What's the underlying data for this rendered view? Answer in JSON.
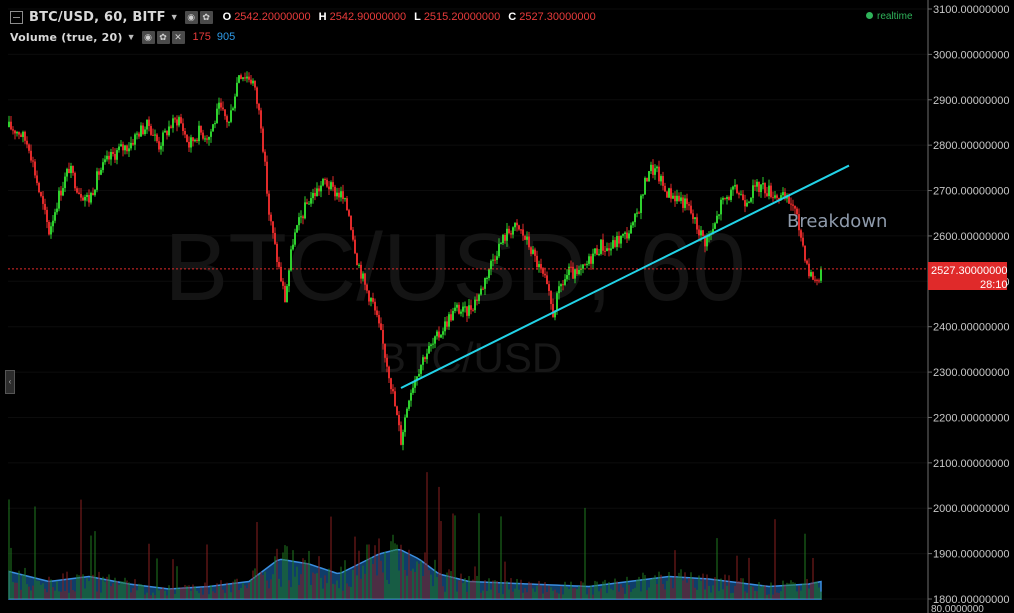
{
  "header": {
    "symbol": "BTC/USD, 60, BITF",
    "open_label": "O",
    "open_value": "2542.20000000",
    "high_label": "H",
    "high_value": "2542.90000000",
    "low_label": "L",
    "low_value": "2515.20000000",
    "close_label": "C",
    "close_value": "2527.30000000",
    "volume_label": "Volume (true, 20)",
    "volume_value_red": "175",
    "volume_value_blue": "905",
    "realtime_label": "realtime"
  },
  "watermark": {
    "main": "BTC/USD, 60",
    "sub": "BTC/USD"
  },
  "annotation": {
    "text": "Breakdown"
  },
  "colors": {
    "up": "#2ed12e",
    "down": "#e02a2a",
    "trendline": "#22d3e8",
    "price_line": "#e02a2a",
    "volume_area": "#1b6fc0"
  },
  "chart_data": {
    "type": "candlestick",
    "y_axis": {
      "labels": [
        "3100.00000000",
        "3000.00000000",
        "2900.00000000",
        "2800.00000000",
        "2700.00000000",
        "2600.00000000",
        "2500.00000000",
        "2400.00000000",
        "2300.00000000",
        "2200.00000000",
        "2100.00000000",
        "2000.00000000",
        "1900.00000000",
        "1800.00000000"
      ],
      "ylim": [
        1800,
        3100
      ],
      "volume_axis_label": "80.0000000"
    },
    "current_price": {
      "label": "2527.30000000",
      "timer": "28:10",
      "value": 2527.3
    },
    "price_path": [
      [
        0,
        2840
      ],
      [
        5,
        2830
      ],
      [
        10,
        2800
      ],
      [
        15,
        2700
      ],
      [
        20,
        2610
      ],
      [
        25,
        2690
      ],
      [
        30,
        2750
      ],
      [
        35,
        2700
      ],
      [
        40,
        2680
      ],
      [
        45,
        2740
      ],
      [
        50,
        2770
      ],
      [
        55,
        2790
      ],
      [
        60,
        2800
      ],
      [
        65,
        2830
      ],
      [
        70,
        2845
      ],
      [
        75,
        2800
      ],
      [
        80,
        2840
      ],
      [
        85,
        2860
      ],
      [
        90,
        2800
      ],
      [
        95,
        2830
      ],
      [
        100,
        2820
      ],
      [
        105,
        2880
      ],
      [
        110,
        2850
      ],
      [
        115,
        2960
      ],
      [
        120,
        2950
      ],
      [
        122,
        2940
      ],
      [
        126,
        2850
      ],
      [
        130,
        2650
      ],
      [
        134,
        2550
      ],
      [
        138,
        2460
      ],
      [
        142,
        2590
      ],
      [
        146,
        2640
      ],
      [
        150,
        2680
      ],
      [
        154,
        2700
      ],
      [
        158,
        2720
      ],
      [
        162,
        2700
      ],
      [
        166,
        2690
      ],
      [
        170,
        2650
      ],
      [
        174,
        2550
      ],
      [
        178,
        2490
      ],
      [
        182,
        2450
      ],
      [
        186,
        2380
      ],
      [
        190,
        2300
      ],
      [
        194,
        2200
      ],
      [
        196,
        2150
      ],
      [
        200,
        2250
      ],
      [
        204,
        2300
      ],
      [
        208,
        2340
      ],
      [
        212,
        2360
      ],
      [
        216,
        2390
      ],
      [
        220,
        2420
      ],
      [
        224,
        2440
      ],
      [
        228,
        2430
      ],
      [
        232,
        2450
      ],
      [
        236,
        2480
      ],
      [
        240,
        2530
      ],
      [
        244,
        2570
      ],
      [
        248,
        2600
      ],
      [
        252,
        2620
      ],
      [
        256,
        2610
      ],
      [
        260,
        2580
      ],
      [
        264,
        2540
      ],
      [
        268,
        2500
      ],
      [
        272,
        2430
      ],
      [
        276,
        2490
      ],
      [
        280,
        2520
      ],
      [
        284,
        2510
      ],
      [
        288,
        2530
      ],
      [
        292,
        2560
      ],
      [
        296,
        2580
      ],
      [
        300,
        2570
      ],
      [
        304,
        2590
      ],
      [
        308,
        2600
      ],
      [
        312,
        2620
      ],
      [
        316,
        2680
      ],
      [
        320,
        2750
      ],
      [
        324,
        2740
      ],
      [
        328,
        2700
      ],
      [
        332,
        2690
      ],
      [
        336,
        2680
      ],
      [
        340,
        2660
      ],
      [
        344,
        2620
      ],
      [
        348,
        2590
      ],
      [
        352,
        2610
      ],
      [
        356,
        2670
      ],
      [
        360,
        2690
      ],
      [
        364,
        2700
      ],
      [
        368,
        2680
      ],
      [
        372,
        2700
      ],
      [
        376,
        2710
      ],
      [
        380,
        2700
      ],
      [
        384,
        2690
      ],
      [
        388,
        2680
      ],
      [
        392,
        2670
      ],
      [
        396,
        2600
      ],
      [
        400,
        2520
      ],
      [
        404,
        2500
      ],
      [
        406,
        2527.3
      ]
    ],
    "volume_profile": [
      [
        0,
        0.55
      ],
      [
        20,
        0.35
      ],
      [
        40,
        0.45
      ],
      [
        60,
        0.3
      ],
      [
        80,
        0.2
      ],
      [
        100,
        0.25
      ],
      [
        120,
        0.35
      ],
      [
        135,
        0.8
      ],
      [
        150,
        0.7
      ],
      [
        165,
        0.5
      ],
      [
        175,
        0.7
      ],
      [
        185,
        0.9
      ],
      [
        195,
        1.0
      ],
      [
        205,
        0.8
      ],
      [
        215,
        0.5
      ],
      [
        230,
        0.35
      ],
      [
        260,
        0.3
      ],
      [
        290,
        0.25
      ],
      [
        310,
        0.35
      ],
      [
        330,
        0.45
      ],
      [
        350,
        0.4
      ],
      [
        380,
        0.25
      ],
      [
        400,
        0.3
      ],
      [
        406,
        0.35
      ]
    ],
    "trendline": {
      "start": {
        "bar": 196,
        "price": 2265
      },
      "end": {
        "bar": 420,
        "price": 2755
      }
    }
  }
}
